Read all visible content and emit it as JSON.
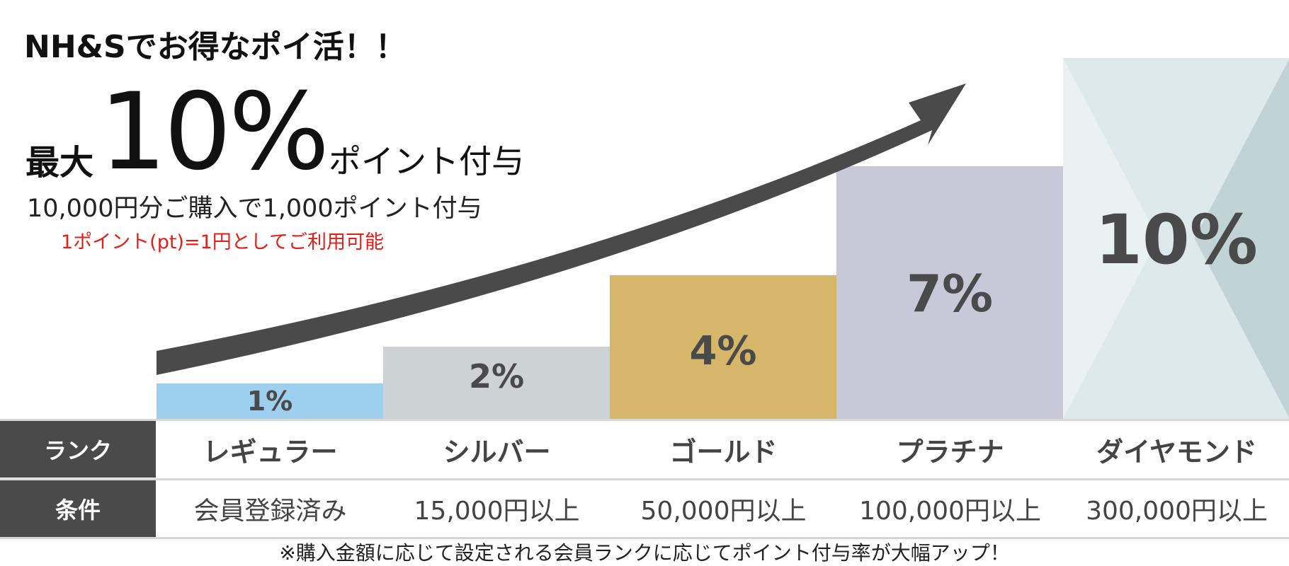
{
  "header": {
    "headline": "NH&Sでお得なポイ活！！",
    "max_prefix": "最大",
    "max_value": "10%",
    "max_suffix": "ポイント付与",
    "sub1": "10,000円分ご購入で1,000ポイント付与",
    "sub2": "1ポイント(pt)=1円としてご利用可能"
  },
  "chart_data": {
    "type": "bar",
    "categories": [
      "レギュラー",
      "シルバー",
      "ゴールド",
      "プラチナ",
      "ダイヤモンド"
    ],
    "values": [
      1,
      2,
      4,
      7,
      10
    ],
    "data_labels": [
      "1%",
      "2%",
      "4%",
      "7%",
      "10%"
    ],
    "colors": [
      "#9ecfee",
      "#cdd3d4",
      "#d6b669",
      "#c9c8d8",
      "#dde9ea"
    ],
    "diamond_accent_colors": [
      "#eaf1f1",
      "#c2d3d5"
    ],
    "arrow_color": "#4a4a4a",
    "label_color": "#4a4a4a",
    "ylim": [
      0,
      10
    ],
    "grid": false,
    "legend": "none"
  },
  "table": {
    "rank_header": "ランク",
    "condition_header": "条件",
    "ranks": [
      "レギュラー",
      "シルバー",
      "ゴールド",
      "プラチナ",
      "ダイヤモンド"
    ],
    "conditions": [
      "会員登録済み",
      "15,000円以上",
      "50,000円以上",
      "100,000円以上",
      "300,000円以上"
    ]
  },
  "footnote": "※購入金額に応じて設定される会員ランクに応じてポイント付与率が大幅アップ！"
}
